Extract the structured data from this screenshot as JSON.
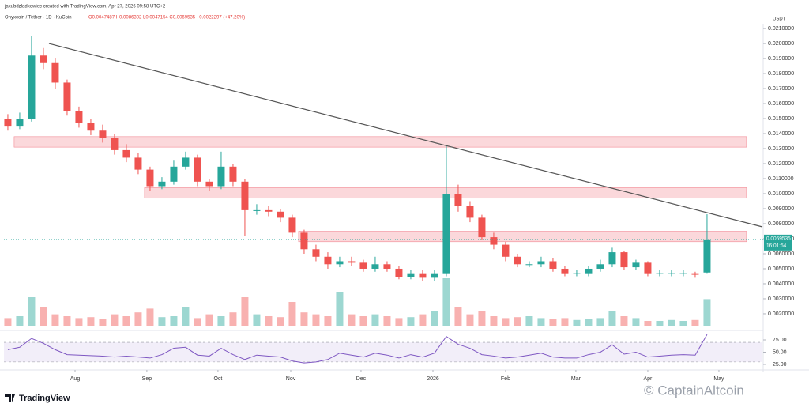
{
  "chart_data": {
    "type": "candlestick",
    "title": "jakubdzladkowiec created with TradingView.com, Apr 27, 2026 09:58 UTC+2",
    "subtitle": "Onyxcoin / Tether · 1D · KuCoin",
    "ohlc_text": "O0.0047487 H0.0086302 L0.0047154 C0.0069535 +0.0022297 (+47.20%)",
    "currency": "USDT",
    "price_timer": "16:01:54",
    "watermark": "© CaptainAltcoin",
    "logo": "TradingView",
    "xlim": [
      -0.33,
      63.67
    ],
    "xticks": [
      {
        "value": 5.67,
        "label": "Aug"
      },
      {
        "value": 11.73,
        "label": "Sep"
      },
      {
        "value": 17.73,
        "label": "Oct"
      },
      {
        "value": 23.87,
        "label": "Nov"
      },
      {
        "value": 29.8,
        "label": "Dec"
      },
      {
        "value": 35.87,
        "label": "2026"
      },
      {
        "value": 42,
        "label": "Feb"
      },
      {
        "value": 47.93,
        "label": "Mar"
      },
      {
        "value": 54,
        "label": "Apr"
      },
      {
        "value": 60,
        "label": "May"
      }
    ],
    "ylim": [
      0.00105,
      0.02132
    ],
    "yticks": [
      {
        "value": 0.021,
        "label": "0.0210000"
      },
      {
        "value": 0.02,
        "label": "0.0200000"
      },
      {
        "value": 0.019,
        "label": "0.0190000"
      },
      {
        "value": 0.018,
        "label": "0.0180000"
      },
      {
        "value": 0.017,
        "label": "0.0170000"
      },
      {
        "value": 0.016,
        "label": "0.0160000"
      },
      {
        "value": 0.015,
        "label": "0.0150000"
      },
      {
        "value": 0.014,
        "label": "0.0140000"
      },
      {
        "value": 0.013,
        "label": "0.0130000"
      },
      {
        "value": 0.012,
        "label": "0.0120000"
      },
      {
        "value": 0.011,
        "label": "0.0110000"
      },
      {
        "value": 0.01,
        "label": "0.0100000"
      },
      {
        "value": 0.009,
        "label": "0.0090000"
      },
      {
        "value": 0.008,
        "label": "0.0080000"
      },
      {
        "value": 0.007,
        "label": "0.0070000"
      },
      {
        "value": 0.006,
        "label": "0.0060000"
      },
      {
        "value": 0.005,
        "label": "0.0050000"
      },
      {
        "value": 0.004,
        "label": "0.0040000"
      },
      {
        "value": 0.003,
        "label": "0.0030000"
      },
      {
        "value": 0.002,
        "label": "0.0020000"
      }
    ],
    "up_color": "#26a69a",
    "down_color": "#ef5350",
    "open": [
      0.015,
      0.01447,
      0.015,
      0.0192,
      0.0187,
      0.0174,
      0.0155,
      0.0147,
      0.0142,
      0.0137,
      0.0129,
      0.0124,
      0.0116,
      0.0105,
      0.0108,
      0.0118,
      0.0124,
      0.0108,
      0.0105,
      0.0118,
      0.0108,
      0.0089,
      0.0089,
      0.0088,
      0.0084,
      0.0074,
      0.0063,
      0.0058,
      0.0053,
      0.0055,
      0.0054,
      0.005,
      0.0053,
      0.005,
      0.00447,
      0.0047,
      0.0044,
      0.0047,
      0.01,
      0.0092,
      0.0084,
      0.0071,
      0.0066,
      0.0058,
      0.0053,
      0.0053,
      0.0055,
      0.005,
      0.0047,
      0.0047,
      0.005,
      0.0053,
      0.0061,
      0.0051,
      0.0054,
      0.0047,
      0.0047,
      0.0047,
      0.0047,
      0.0047487
    ],
    "high": [
      0.0153,
      0.0154,
      0.0205,
      0.0197,
      0.019,
      0.0176,
      0.0158,
      0.015,
      0.0146,
      0.014,
      0.0133,
      0.0127,
      0.0118,
      0.0111,
      0.0122,
      0.0128,
      0.0126,
      0.011,
      0.0128,
      0.012,
      0.011,
      0.0093,
      0.0092,
      0.009,
      0.0086,
      0.0076,
      0.0066,
      0.0061,
      0.0058,
      0.0058,
      0.0056,
      0.0058,
      0.0055,
      0.0052,
      0.0049,
      0.0049,
      0.0049,
      0.0132,
      0.0106,
      0.0095,
      0.0086,
      0.0074,
      0.0068,
      0.006,
      0.0055,
      0.0058,
      0.0057,
      0.0052,
      0.0049,
      0.0052,
      0.0056,
      0.0064,
      0.0062,
      0.0056,
      0.0055,
      0.0049,
      0.0049,
      0.0049,
      0.0048,
      0.0086302
    ],
    "low": [
      0.0142,
      0.0143,
      0.0148,
      0.0183,
      0.017,
      0.0152,
      0.0144,
      0.0139,
      0.0134,
      0.0126,
      0.0121,
      0.0113,
      0.0102,
      0.0103,
      0.0106,
      0.0116,
      0.0105,
      0.0102,
      0.0103,
      0.0105,
      0.0072,
      0.0086,
      0.0085,
      0.0081,
      0.0071,
      0.006,
      0.0055,
      0.005,
      0.0051,
      0.0052,
      0.0048,
      0.0048,
      0.0048,
      0.0043,
      0.0043,
      0.0042,
      0.0042,
      0.0045,
      0.0088,
      0.0081,
      0.0069,
      0.0063,
      0.0055,
      0.0051,
      0.0051,
      0.0051,
      0.0048,
      0.0045,
      0.0045,
      0.0045,
      0.0048,
      0.0051,
      0.0049,
      0.0049,
      0.0045,
      0.0045,
      0.0045,
      0.0045,
      0.0044,
      0.0047154
    ],
    "close": [
      0.01447,
      0.015,
      0.0192,
      0.0187,
      0.0174,
      0.0155,
      0.0147,
      0.0142,
      0.0137,
      0.0129,
      0.0124,
      0.0116,
      0.0105,
      0.0108,
      0.0118,
      0.0124,
      0.0108,
      0.0105,
      0.0118,
      0.0108,
      0.0089,
      0.0089,
      0.0088,
      0.0084,
      0.0074,
      0.0063,
      0.0058,
      0.0053,
      0.0055,
      0.0054,
      0.005,
      0.0053,
      0.005,
      0.00447,
      0.0047,
      0.0044,
      0.0047,
      0.01,
      0.0092,
      0.0084,
      0.0071,
      0.0066,
      0.0058,
      0.0053,
      0.0053,
      0.0055,
      0.005,
      0.0047,
      0.0047,
      0.005,
      0.0053,
      0.0061,
      0.0051,
      0.0054,
      0.0047,
      0.0047,
      0.0047,
      0.0047,
      0.0046,
      0.0069535
    ],
    "volume": [
      8,
      10,
      30,
      20,
      12,
      10,
      8,
      9,
      7,
      12,
      10,
      14,
      18,
      9,
      10,
      20,
      8,
      12,
      10,
      14,
      30,
      12,
      10,
      9,
      25,
      14,
      12,
      10,
      35,
      12,
      10,
      12,
      10,
      8,
      9,
      12,
      15,
      50,
      20,
      12,
      15,
      10,
      8,
      9,
      10,
      8,
      7,
      8,
      6,
      7,
      8,
      15,
      10,
      8,
      5,
      5,
      6,
      5,
      6,
      28
    ],
    "volume_ylim": [
      0,
      100
    ],
    "trendline": {
      "start": [
        3.47,
        0.02
      ],
      "end": [
        63.67,
        0.00779
      ],
      "color": "#555555"
    },
    "zones": [
      {
        "start": 0.53,
        "end": 62.33,
        "top": 0.0138,
        "bottom": 0.0131
      },
      {
        "start": 11.53,
        "end": 62.33,
        "top": 0.0104,
        "bottom": 0.0097
      },
      {
        "start": 24.53,
        "end": 62.33,
        "top": 0.0075,
        "bottom": 0.0068
      }
    ],
    "rsi": {
      "values": [
        55,
        60,
        78,
        68,
        55,
        45,
        44,
        43,
        42,
        40,
        42,
        40,
        38,
        45,
        58,
        60,
        44,
        42,
        58,
        45,
        35,
        44,
        42,
        40,
        32,
        28,
        30,
        35,
        48,
        44,
        40,
        48,
        44,
        38,
        45,
        40,
        48,
        82,
        66,
        58,
        45,
        42,
        38,
        40,
        44,
        48,
        40,
        38,
        38,
        45,
        50,
        65,
        46,
        50,
        40,
        42,
        44,
        45,
        44,
        86
      ],
      "ylim": [
        18.5,
        87.9
      ],
      "band": [
        30,
        70
      ],
      "color": "#7e57c2",
      "yticks": [
        {
          "value": 75,
          "label": "75.00"
        },
        {
          "value": 50,
          "label": "50.00"
        },
        {
          "value": 25,
          "label": "25.00"
        }
      ]
    }
  }
}
